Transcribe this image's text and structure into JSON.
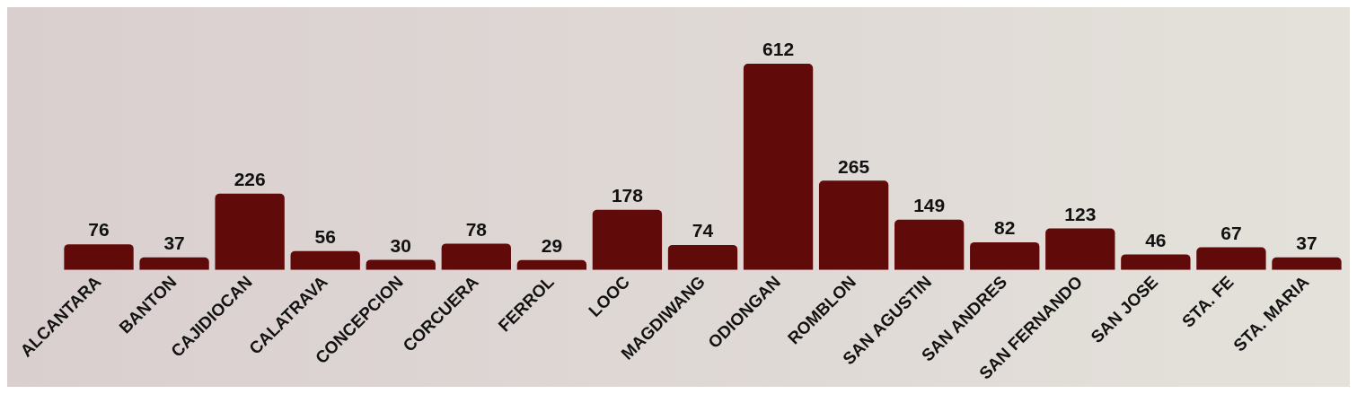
{
  "chart_data": {
    "type": "bar",
    "categories": [
      "ALCANTARA",
      "BANTON",
      "CAJIDIOCAN",
      "CALATRAVA",
      "CONCEPCION",
      "CORCUERA",
      "FERROL",
      "LOOC",
      "MAGDIWANG",
      "ODIONGAN",
      "ROMBLON",
      "SAN AGUSTIN",
      "SAN ANDRES",
      "SAN FERNANDO",
      "SAN JOSE",
      "STA. FE",
      "STA. MARIA"
    ],
    "values": [
      76,
      37,
      226,
      56,
      30,
      78,
      29,
      178,
      74,
      612,
      265,
      149,
      82,
      123,
      46,
      67,
      37
    ],
    "color": "#610a0a",
    "data_labels": true,
    "grid": false,
    "legend": false
  }
}
